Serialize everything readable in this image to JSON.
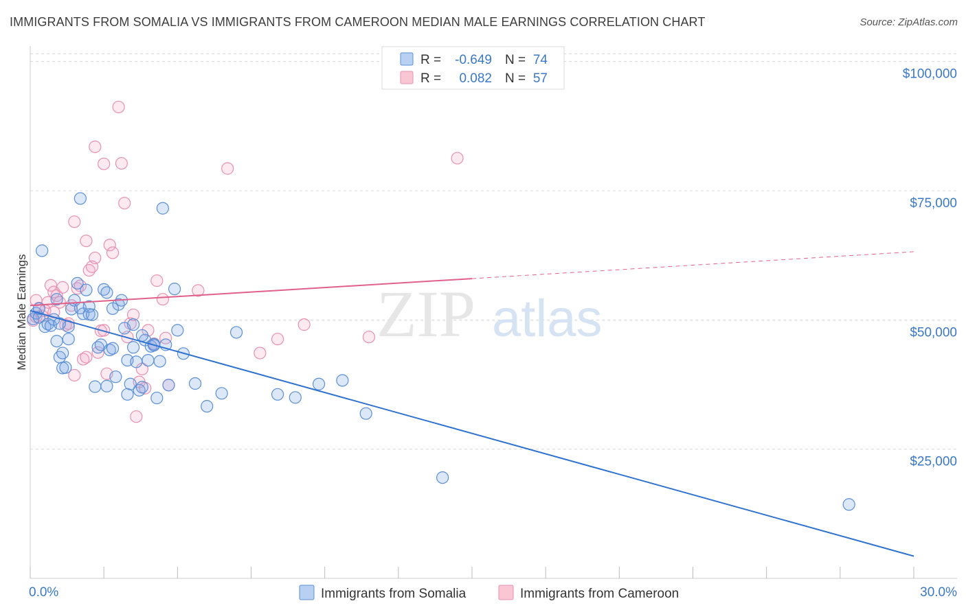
{
  "title": "IMMIGRANTS FROM SOMALIA VS IMMIGRANTS FROM CAMEROON MEDIAN MALE EARNINGS CORRELATION CHART",
  "source": "Source: ZipAtlas.com",
  "watermark": {
    "zip": "ZIP",
    "atlas": "atlas"
  },
  "colors": {
    "somalia_fill": "rgba(130,170,230,0.28)",
    "somalia_stroke": "#5b8fd6",
    "somalia_line": "#2f72d0",
    "cameroon_fill": "rgba(245,160,190,0.22)",
    "cameroon_stroke": "#e890b0",
    "cameroon_line": "#e0608a",
    "tick_label": "#3a78c8",
    "grid": "#d8d8d8"
  },
  "legend_top": [
    {
      "series": "Immigrants from Somalia",
      "r_label": "R =",
      "r_value": "-0.649",
      "n_label": "N =",
      "n_value": "74"
    },
    {
      "series": "Immigrants from Cameroon",
      "r_label": "R =",
      "r_value": "0.082",
      "n_label": "N =",
      "n_value": "57"
    }
  ],
  "chart_data": {
    "type": "scatter",
    "xlabel": "",
    "ylabel": "Median Male Earnings",
    "xlim": [
      0,
      30
    ],
    "ylim": [
      0,
      105000
    ],
    "x_tick_labels": [
      {
        "value": 0,
        "label": "0.0%"
      },
      {
        "value": 30,
        "label": "30.0%"
      }
    ],
    "y_tick_labels": [
      {
        "value": 25000,
        "label": "$25,000"
      },
      {
        "value": 50000,
        "label": "$50,000"
      },
      {
        "value": 75000,
        "label": "$75,000"
      },
      {
        "value": 100000,
        "label": "$100,000"
      }
    ],
    "grid": true,
    "legend_position": "bottom-center",
    "series": [
      {
        "name": "Immigrants from Somalia",
        "r": -0.649,
        "n": 74,
        "trendline": {
          "x": [
            0,
            30
          ],
          "y": [
            51800,
            4300
          ],
          "style": "solid"
        },
        "points": [
          [
            0.1,
            50200
          ],
          [
            0.2,
            51300
          ],
          [
            0.3,
            50500
          ],
          [
            0.4,
            63400
          ],
          [
            0.5,
            48700
          ],
          [
            0.6,
            49200
          ],
          [
            0.7,
            48900
          ],
          [
            0.8,
            50100
          ],
          [
            0.9,
            54000
          ],
          [
            0.9,
            45900
          ],
          [
            1.0,
            42800
          ],
          [
            1.1,
            43600
          ],
          [
            1.1,
            40700
          ],
          [
            1.2,
            40800
          ],
          [
            1.3,
            48700
          ],
          [
            1.3,
            46300
          ],
          [
            1.4,
            52100
          ],
          [
            1.5,
            53800
          ],
          [
            1.6,
            57100
          ],
          [
            1.7,
            52300
          ],
          [
            1.7,
            73500
          ],
          [
            1.8,
            51200
          ],
          [
            1.9,
            55800
          ],
          [
            2.0,
            51100
          ],
          [
            2.0,
            52600
          ],
          [
            2.1,
            51000
          ],
          [
            2.2,
            37100
          ],
          [
            2.3,
            44700
          ],
          [
            2.4,
            45200
          ],
          [
            2.5,
            55900
          ],
          [
            2.6,
            55300
          ],
          [
            2.6,
            37200
          ],
          [
            2.7,
            44200
          ],
          [
            2.8,
            52200
          ],
          [
            2.9,
            39000
          ],
          [
            3.0,
            53000
          ],
          [
            3.1,
            53800
          ],
          [
            3.2,
            48400
          ],
          [
            3.3,
            35600
          ],
          [
            3.3,
            42200
          ],
          [
            3.4,
            37600
          ],
          [
            3.5,
            49100
          ],
          [
            3.5,
            44700
          ],
          [
            3.6,
            41900
          ],
          [
            3.7,
            36400
          ],
          [
            3.8,
            37000
          ],
          [
            3.9,
            46100
          ],
          [
            4.0,
            42200
          ],
          [
            4.1,
            44900
          ],
          [
            4.2,
            45300
          ],
          [
            4.3,
            34900
          ],
          [
            4.4,
            42000
          ],
          [
            4.5,
            71600
          ],
          [
            4.6,
            45200
          ],
          [
            4.7,
            37400
          ],
          [
            4.9,
            56000
          ],
          [
            5.0,
            48000
          ],
          [
            5.2,
            43500
          ],
          [
            5.6,
            37700
          ],
          [
            6.0,
            33300
          ],
          [
            6.5,
            35800
          ],
          [
            7.0,
            47600
          ],
          [
            8.4,
            35600
          ],
          [
            9.0,
            35000
          ],
          [
            9.8,
            37600
          ],
          [
            10.6,
            38300
          ],
          [
            11.4,
            31900
          ],
          [
            14.0,
            19500
          ],
          [
            27.8,
            14300
          ],
          [
            0.3,
            52200
          ],
          [
            1.0,
            49300
          ],
          [
            2.8,
            44500
          ],
          [
            3.8,
            47000
          ],
          [
            4.2,
            45100
          ]
        ]
      },
      {
        "name": "Immigrants from Cameroon",
        "r": 0.082,
        "n": 57,
        "trendline": {
          "x": [
            0,
            30
          ],
          "y": [
            52800,
            63200
          ],
          "solid_to_x": 15,
          "style": "solid-then-dashed"
        },
        "points": [
          [
            0.1,
            49900
          ],
          [
            0.2,
            50600
          ],
          [
            0.3,
            52300
          ],
          [
            0.4,
            50800
          ],
          [
            0.5,
            51800
          ],
          [
            0.6,
            53400
          ],
          [
            0.7,
            56700
          ],
          [
            0.8,
            55400
          ],
          [
            0.9,
            54700
          ],
          [
            1.0,
            53400
          ],
          [
            1.1,
            56300
          ],
          [
            1.2,
            49000
          ],
          [
            1.3,
            49300
          ],
          [
            1.4,
            52800
          ],
          [
            1.5,
            39300
          ],
          [
            1.6,
            56100
          ],
          [
            1.7,
            56600
          ],
          [
            1.8,
            42400
          ],
          [
            1.9,
            42800
          ],
          [
            2.0,
            59600
          ],
          [
            2.1,
            60300
          ],
          [
            2.2,
            62000
          ],
          [
            2.3,
            43700
          ],
          [
            2.4,
            47900
          ],
          [
            2.5,
            48000
          ],
          [
            2.6,
            39600
          ],
          [
            2.7,
            64500
          ],
          [
            2.8,
            63000
          ],
          [
            3.0,
            91200
          ],
          [
            3.1,
            80300
          ],
          [
            3.2,
            72600
          ],
          [
            3.3,
            46700
          ],
          [
            3.4,
            49300
          ],
          [
            3.5,
            51000
          ],
          [
            3.6,
            31300
          ],
          [
            3.7,
            38000
          ],
          [
            3.8,
            40500
          ],
          [
            3.9,
            36800
          ],
          [
            4.0,
            48000
          ],
          [
            4.2,
            45400
          ],
          [
            4.3,
            57600
          ],
          [
            4.5,
            54000
          ],
          [
            4.6,
            46500
          ],
          [
            4.7,
            37400
          ],
          [
            5.7,
            55700
          ],
          [
            6.7,
            79300
          ],
          [
            7.8,
            43600
          ],
          [
            8.4,
            46300
          ],
          [
            9.3,
            49100
          ],
          [
            11.5,
            46700
          ],
          [
            14.5,
            81300
          ],
          [
            1.9,
            65300
          ],
          [
            1.5,
            69000
          ],
          [
            2.2,
            83500
          ],
          [
            2.5,
            80200
          ],
          [
            0.2,
            53800
          ],
          [
            0.8,
            51500
          ]
        ]
      }
    ]
  }
}
